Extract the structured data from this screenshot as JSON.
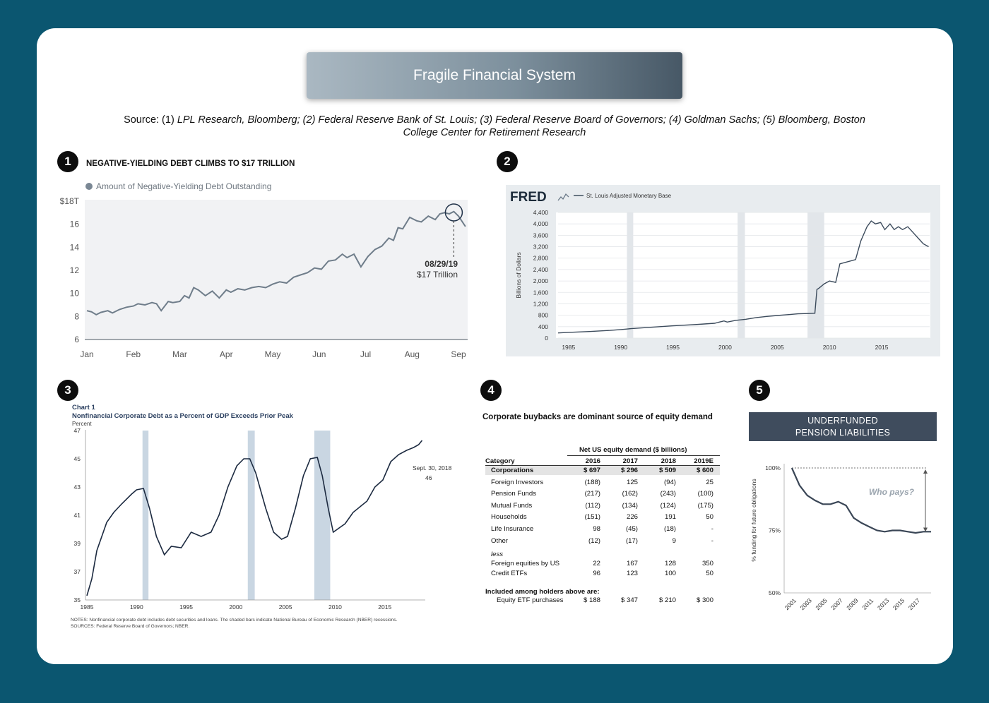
{
  "header": {
    "title": "Fragile Financial System",
    "source_prefix": "Source: (1) ",
    "source_italic": "LPL Research, Bloomberg; (2) Federal Reserve Bank of St. Louis; (3) Federal Reserve Board of Governors; (4) Goldman Sachs; (5) Bloomberg, Boston College Center for Retirement Research"
  },
  "badges": [
    "1",
    "2",
    "3",
    "4",
    "5"
  ],
  "chart_data": [
    {
      "type": "line",
      "title": "NEGATIVE-YIELDING DEBT CLIMBS TO $17 TRILLION",
      "legend": "Amount of Negative-Yielding Debt Outstanding",
      "x_ticks": [
        "Jan",
        "Feb",
        "Mar",
        "Apr",
        "May",
        "Jun",
        "Jul",
        "Aug",
        "Sep"
      ],
      "y_ticks": [
        "$18T",
        "16",
        "14",
        "12",
        "10",
        "8",
        "6"
      ],
      "ylim": [
        6,
        18
      ],
      "annotation": {
        "date": "08/29/19",
        "text": "$17 Trillion"
      },
      "x": [
        0.0,
        0.1,
        0.2,
        0.3,
        0.45,
        0.55,
        0.7,
        0.85,
        1.0,
        1.1,
        1.25,
        1.4,
        1.5,
        1.6,
        1.75,
        1.85,
        2.0,
        2.1,
        2.2,
        2.3,
        2.4,
        2.55,
        2.7,
        2.85,
        3.0,
        3.1,
        3.25,
        3.4,
        3.55,
        3.7,
        3.85,
        4.0,
        4.15,
        4.3,
        4.45,
        4.6,
        4.75,
        4.9,
        5.05,
        5.2,
        5.35,
        5.5,
        5.6,
        5.75,
        5.9,
        6.05,
        6.2,
        6.35,
        6.5,
        6.6,
        6.7,
        6.8,
        6.95,
        7.1,
        7.2,
        7.35,
        7.5,
        7.6,
        7.7,
        7.8,
        7.9,
        8.0,
        8.05,
        8.15
      ],
      "y": [
        8.5,
        8.4,
        8.15,
        8.35,
        8.5,
        8.3,
        8.6,
        8.8,
        8.9,
        9.1,
        9.0,
        9.2,
        9.1,
        8.5,
        9.3,
        9.2,
        9.3,
        9.8,
        9.6,
        10.5,
        10.3,
        9.8,
        10.2,
        9.6,
        10.3,
        10.1,
        10.4,
        10.3,
        10.5,
        10.6,
        10.5,
        10.8,
        11.0,
        10.9,
        11.4,
        11.6,
        11.8,
        12.2,
        12.1,
        12.8,
        12.9,
        13.4,
        13.1,
        13.4,
        12.3,
        13.2,
        13.8,
        14.1,
        14.8,
        14.6,
        15.7,
        15.6,
        16.6,
        16.3,
        16.2,
        16.7,
        16.4,
        16.9,
        17.0,
        16.9,
        17.1,
        16.7,
        16.4,
        15.8
      ]
    },
    {
      "type": "line",
      "legend": "St. Louis Adjusted Monetary Base",
      "logo": "FRED",
      "ylabel": "Billions of Dollars",
      "y_ticks": [
        "4,400",
        "4,000",
        "3,600",
        "3,200",
        "2,800",
        "2,400",
        "2,000",
        "1,600",
        "1,200",
        "800",
        "400",
        "0"
      ],
      "x_ticks": [
        "1985",
        "1990",
        "1995",
        "2000",
        "2005",
        "2010",
        "2015"
      ],
      "xlim": [
        1984.0,
        2019.6
      ],
      "ylim": [
        0,
        4400
      ],
      "recessions": [
        [
          1990.6,
          1991.2
        ],
        [
          2001.2,
          2001.9
        ],
        [
          2007.9,
          2009.5
        ]
      ],
      "x": [
        1984.0,
        1985,
        1987,
        1989,
        1990,
        1991,
        1993,
        1995,
        1997,
        1999,
        1999.9,
        2000.2,
        2001,
        2002,
        2003,
        2004,
        2005,
        2006,
        2007,
        2008,
        2008.6,
        2008.8,
        2009,
        2009.5,
        2010,
        2010.6,
        2011,
        2011.5,
        2012,
        2012.5,
        2013,
        2013.6,
        2014,
        2014.4,
        2014.9,
        2015.3,
        2015.8,
        2016.2,
        2016.6,
        2017,
        2017.5,
        2018,
        2018.5,
        2019,
        2019.5
      ],
      "y": [
        180,
        200,
        230,
        270,
        300,
        330,
        380,
        430,
        470,
        520,
        600,
        560,
        620,
        660,
        720,
        760,
        790,
        820,
        850,
        860,
        870,
        1700,
        1750,
        1900,
        2000,
        1950,
        2600,
        2650,
        2700,
        2750,
        3400,
        3900,
        4100,
        4000,
        4050,
        3800,
        4000,
        3800,
        3900,
        3800,
        3900,
        3700,
        3500,
        3300,
        3200
      ]
    },
    {
      "type": "line",
      "title_line1": "Chart 1",
      "title": "Nonfinancial Corporate Debt as a Percent of GDP Exceeds Prior Peak",
      "ylabel": "Percent",
      "y_ticks": [
        "47",
        "45",
        "43",
        "41",
        "39",
        "37",
        "35"
      ],
      "x_ticks": [
        "1985",
        "1990",
        "1995",
        "2000",
        "2005",
        "2010",
        "2015"
      ],
      "xlim": [
        1985.0,
        2019.0
      ],
      "ylim": [
        35,
        47
      ],
      "recessions": [
        [
          1990.6,
          1991.2
        ],
        [
          2001.2,
          2001.9
        ],
        [
          2007.9,
          2009.5
        ]
      ],
      "annotation": {
        "date": "Sept. 30, 2018",
        "value": "46"
      },
      "notes": "NOTES: Nonfinancial corporate debt includes debt securities and loans. The shaded bars indicate National Bureau of Economic Research (NBER) recessions.",
      "sources": "SOURCES: Federal Reserve Board of Governors; NBER.",
      "x": [
        1985.0,
        1985.5,
        1986,
        1987,
        1987.7,
        1988.5,
        1989.5,
        1990,
        1990.7,
        1991.3,
        1992,
        1992.8,
        1993.5,
        1994.5,
        1995.5,
        1996.5,
        1997.5,
        1998.3,
        1999.2,
        2000.1,
        2000.8,
        2001.4,
        2002,
        2003,
        2003.8,
        2004.6,
        2005.2,
        2006,
        2006.8,
        2007.5,
        2008.2,
        2008.7,
        2009.3,
        2009.8,
        2010.4,
        2011,
        2011.8,
        2012.5,
        2013.2,
        2014,
        2014.8,
        2015.6,
        2016.4,
        2017.2,
        2017.9,
        2018.4,
        2018.75
      ],
      "y": [
        35.3,
        36.5,
        38.5,
        40.5,
        41.2,
        41.8,
        42.5,
        42.8,
        42.9,
        41.5,
        39.5,
        38.2,
        38.8,
        38.7,
        39.8,
        39.5,
        39.8,
        41.0,
        43.0,
        44.5,
        45.0,
        45.0,
        44.0,
        41.5,
        39.8,
        39.3,
        39.5,
        41.5,
        43.8,
        45.0,
        45.1,
        43.8,
        41.5,
        39.8,
        40.1,
        40.4,
        41.2,
        41.6,
        42.0,
        43.0,
        43.5,
        44.8,
        45.3,
        45.6,
        45.8,
        46.0,
        46.3
      ]
    },
    {
      "type": "table",
      "title": "Corporate buybacks are dominant source of equity demand",
      "header_group": "Net US equity demand ($ billions)",
      "columns": [
        "Category",
        "2016",
        "2017",
        "2018",
        "2019E"
      ],
      "rows": [
        {
          "label": "Corporations",
          "values": [
            "$ 697",
            "$ 296",
            "$ 509",
            "$ 600"
          ],
          "bold": true
        },
        {
          "label": "Foreign Investors",
          "values": [
            "(188)",
            "125",
            "(94)",
            "25"
          ]
        },
        {
          "label": "Pension Funds",
          "values": [
            "(217)",
            "(162)",
            "(243)",
            "(100)"
          ]
        },
        {
          "label": "Mutual Funds",
          "values": [
            "(112)",
            "(134)",
            "(124)",
            "(175)"
          ]
        },
        {
          "label": "Households",
          "values": [
            "(151)",
            "226",
            "191",
            "50"
          ]
        },
        {
          "label": "Life Insurance",
          "values": [
            "98",
            "(45)",
            "(18)",
            "-"
          ]
        },
        {
          "label": "Other",
          "values": [
            "(12)",
            "(17)",
            "9",
            "-"
          ]
        }
      ],
      "less_label": "less",
      "less_rows": [
        {
          "label": "Foreign equities by US",
          "values": [
            "22",
            "167",
            "128",
            "350"
          ]
        },
        {
          "label": "Credit ETFs",
          "values": [
            "96",
            "123",
            "100",
            "50"
          ]
        }
      ],
      "included_label": "Included among holders above are:",
      "included_row": {
        "label": "Equity ETF purchases",
        "values": [
          "$ 188",
          "$ 347",
          "$ 210",
          "$ 300"
        ]
      }
    },
    {
      "type": "line",
      "title_line1": "UNDERFUNDED",
      "title_line2": "PENSION LIABILITIES",
      "ylabel": "% funding for future obligations",
      "y_ticks": [
        "100%",
        "75%",
        "50%"
      ],
      "x_ticks": [
        "2001",
        "2003",
        "2005",
        "2007",
        "2009",
        "2011",
        "2013",
        "2015",
        "2017"
      ],
      "xlim": [
        2000.0,
        2019.0
      ],
      "ylim": [
        50,
        100
      ],
      "annotation": "Who pays?",
      "x": [
        2001,
        2002,
        2003,
        2004,
        2005,
        2006,
        2007,
        2008,
        2009,
        2010,
        2011,
        2012,
        2013,
        2014,
        2015,
        2016,
        2017,
        2018,
        2019
      ],
      "y": [
        100,
        93,
        89,
        87,
        85.5,
        85.5,
        86.5,
        85,
        80,
        78,
        76.5,
        75,
        74.5,
        75,
        75,
        74.5,
        74,
        74.5,
        74.5
      ]
    }
  ]
}
